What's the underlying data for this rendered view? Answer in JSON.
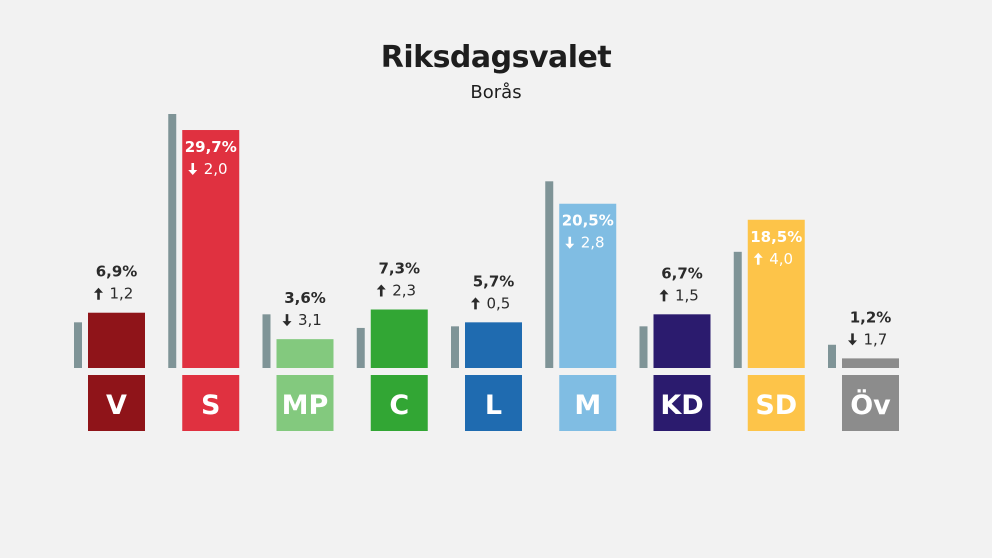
{
  "chart_data": {
    "type": "bar",
    "title": "Riksdagsvalet",
    "subtitle": "Borås",
    "categories": [
      "V",
      "S",
      "MP",
      "C",
      "L",
      "M",
      "KD",
      "SD",
      "Öv"
    ],
    "series": [
      {
        "values": [
          6.9,
          29.7,
          3.6,
          7.3,
          5.7,
          20.5,
          6.7,
          18.5,
          1.2
        ]
      },
      {
        "values": [
          5.7,
          31.7,
          6.7,
          5.0,
          5.2,
          23.3,
          5.2,
          14.5,
          2.9
        ]
      }
    ],
    "value_labels": [
      "6,9%",
      "29,7%",
      "3,6%",
      "7,3%",
      "5,7%",
      "20,5%",
      "6,7%",
      "18,5%",
      "1,2%"
    ],
    "change_labels": [
      "1,2",
      "2,0",
      "3,1",
      "2,3",
      "0,5",
      "2,8",
      "1,5",
      "4,0",
      "1,7"
    ],
    "change_direction": [
      "up",
      "down",
      "down",
      "up",
      "up",
      "down",
      "up",
      "up",
      "down"
    ],
    "colors": [
      "#8f1419",
      "#e03140",
      "#83c97e",
      "#32a634",
      "#1f6bb0",
      "#80bde3",
      "#2b1b6e",
      "#fdc449",
      "#8c8c8c"
    ],
    "previous_color": "#7f9497",
    "ylim": [
      0,
      31.7
    ]
  }
}
